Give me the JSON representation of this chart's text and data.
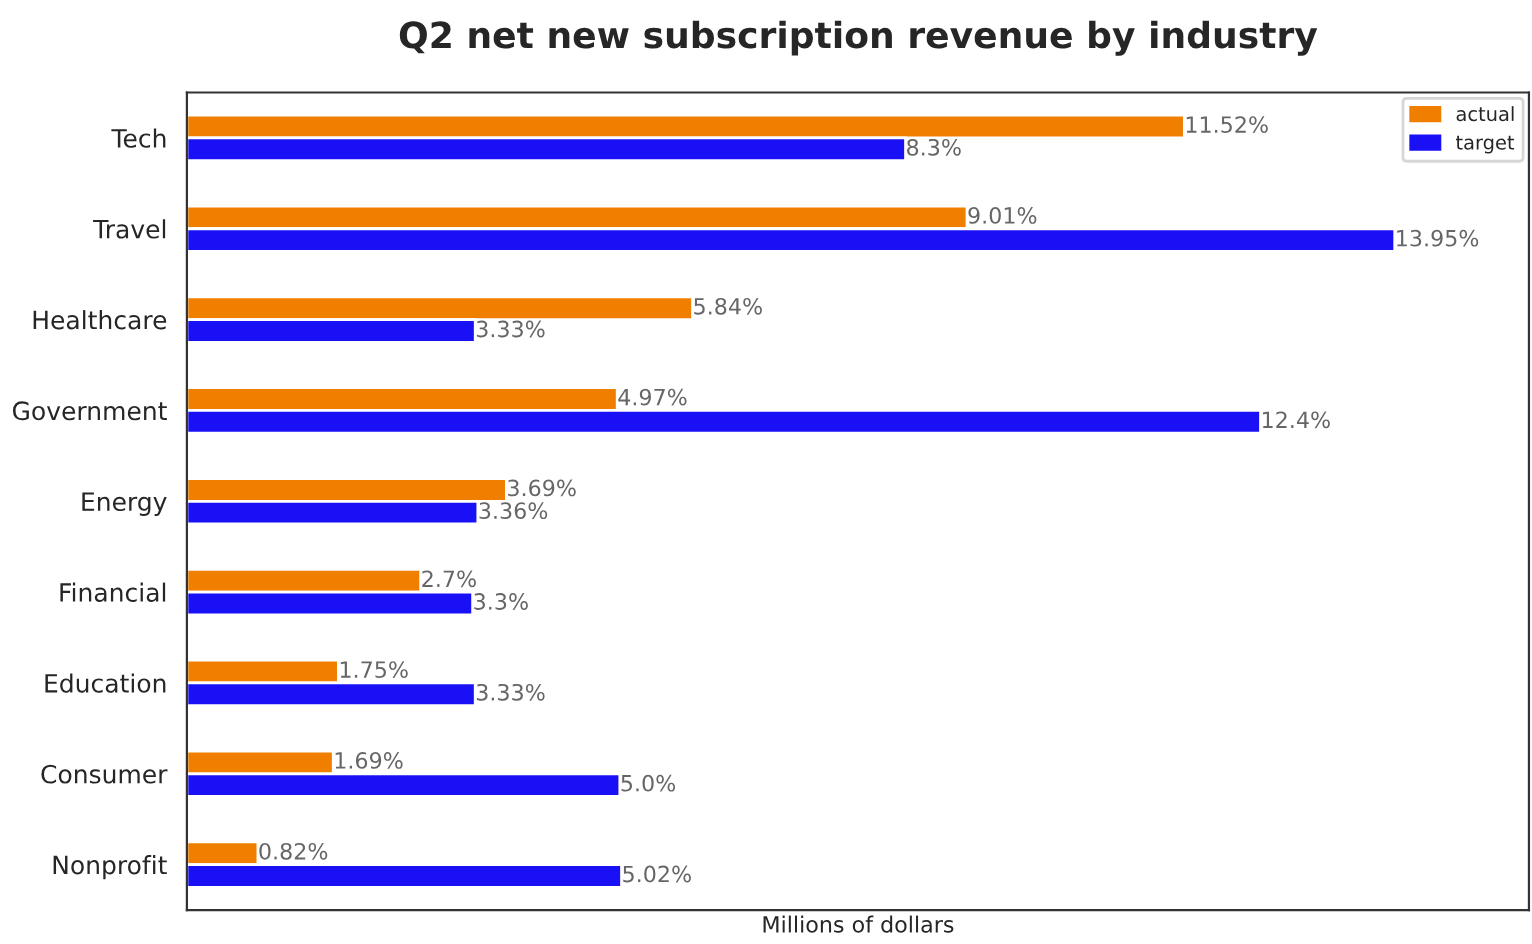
{
  "chart_data": {
    "type": "bar",
    "orientation": "horizontal",
    "title": "Q2 net new subscription revenue by industry",
    "xlabel": "Millions of dollars",
    "categories": [
      "Tech",
      "Travel",
      "Healthcare",
      "Government",
      "Energy",
      "Financial",
      "Education",
      "Consumer",
      "Nonprofit"
    ],
    "series": [
      {
        "name": "actual",
        "color": "#f07f00",
        "values": [
          11.52,
          9.01,
          5.84,
          4.97,
          3.69,
          2.7,
          1.75,
          1.69,
          0.82
        ],
        "value_labels": [
          "11.52%",
          "9.01%",
          "5.84%",
          "4.97%",
          "3.69%",
          "2.7%",
          "1.75%",
          "1.69%",
          "0.82%"
        ]
      },
      {
        "name": "target",
        "color": "#1a10f5",
        "values": [
          8.3,
          13.95,
          3.33,
          12.4,
          3.36,
          3.3,
          3.33,
          5.0,
          5.02
        ],
        "value_labels": [
          "8.3%",
          "13.95%",
          "3.33%",
          "12.4%",
          "3.36%",
          "3.3%",
          "3.33%",
          "5.0%",
          "5.02%"
        ]
      }
    ],
    "xlim": [
      0,
      15.5
    ],
    "tick_labels": "y",
    "legend": "top right",
    "grid": false
  }
}
